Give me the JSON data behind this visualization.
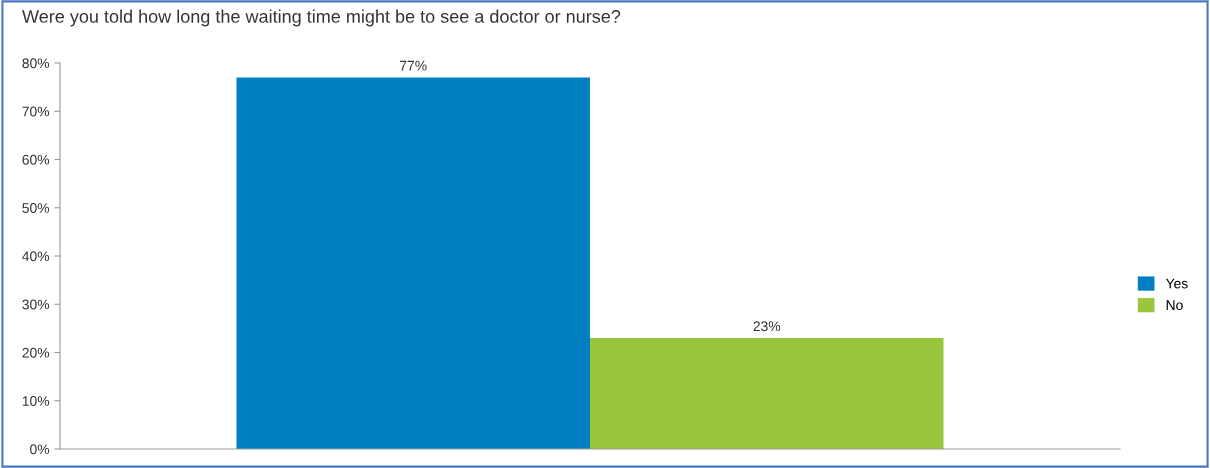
{
  "chart_data": {
    "type": "bar",
    "title": "Were you told how long the waiting time might be to see a doctor or nurse?",
    "categories": [
      null
    ],
    "series": [
      {
        "name": "Yes",
        "color": "#0080c2",
        "values": [
          77
        ],
        "value_labels": [
          "77%"
        ]
      },
      {
        "name": "No",
        "color": "#99c63c",
        "values": [
          23
        ],
        "value_labels": [
          "23%"
        ]
      }
    ],
    "ylim": [
      0,
      80
    ],
    "yticks": [
      {
        "value": 0,
        "label": "0%"
      },
      {
        "value": 10,
        "label": "10%"
      },
      {
        "value": 20,
        "label": "20%"
      },
      {
        "value": 30,
        "label": "30%"
      },
      {
        "value": 40,
        "label": "40%"
      },
      {
        "value": 50,
        "label": "50%"
      },
      {
        "value": 60,
        "label": "60%"
      },
      {
        "value": 70,
        "label": "70%"
      },
      {
        "value": 80,
        "label": "80%"
      }
    ],
    "grid": false,
    "legend": "right"
  }
}
